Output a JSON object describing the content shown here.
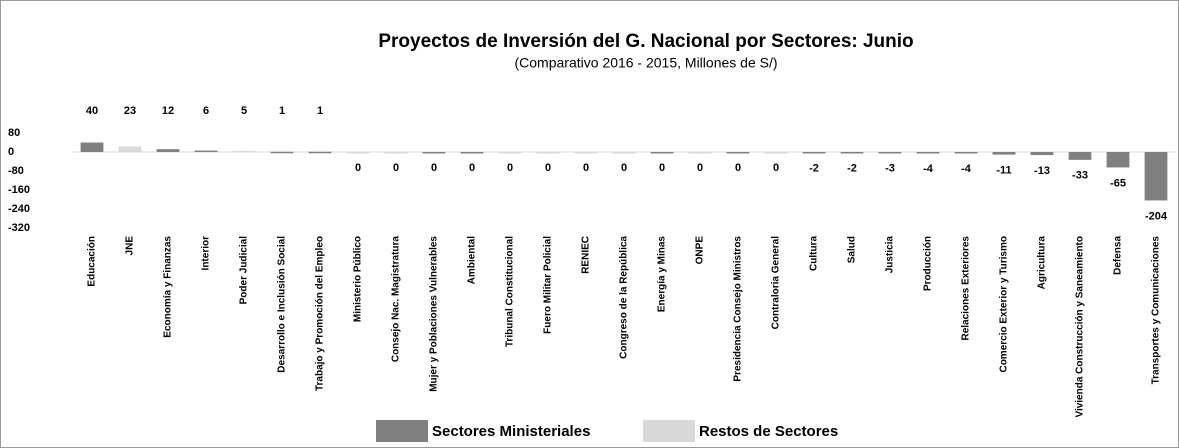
{
  "chart_data": {
    "type": "bar",
    "title": "Proyectos de Inversión del G. Nacional por Sectores: Junio",
    "subtitle": "(Comparativo 2016 - 2015, Millones de S/)",
    "categories": [
      "Educación",
      "JNE",
      "Economía y Finanzas",
      "Interior",
      "Poder Judicial",
      "Desarrollo e Inclusión Social",
      "Trabajo y Promoción del Empleo",
      "Ministerio Público",
      "Consejo Nac. Magistratura",
      "Mujer y Poblaciones Vulnerables",
      "Ambiental",
      "Tribunal Constitucional",
      "Fuero Militar Policial",
      "RENIEC",
      "Congreso de la República",
      "Energía y Minas",
      "ONPE",
      "Presidencia Consejo Ministros",
      "Contraloria General",
      "Cultura",
      "Salud",
      "Justicia",
      "Producción",
      "Relaciones Exteriores",
      "Comercio Exterior y Turismo",
      "Agricultura",
      "Vivienda Construcción y Saneamiento",
      "Defensa",
      "Transportes y Comunicaciones"
    ],
    "series": [
      {
        "name": "Sectores Ministeriales",
        "color": "#808080",
        "values": [
          40,
          null,
          12,
          6,
          null,
          1,
          1,
          null,
          null,
          0,
          0,
          null,
          null,
          null,
          null,
          0,
          null,
          0,
          null,
          -2,
          -2,
          -3,
          -4,
          -4,
          -11,
          -13,
          -33,
          -65,
          -204
        ]
      },
      {
        "name": "Restos de Sectores",
        "color": "#d9d9d9",
        "values": [
          null,
          23,
          null,
          null,
          5,
          null,
          null,
          0,
          0,
          null,
          null,
          0,
          0,
          0,
          0,
          null,
          0,
          null,
          0,
          null,
          null,
          null,
          null,
          null,
          null,
          null,
          null,
          null,
          null
        ]
      }
    ],
    "ylim": [
      -320,
      80
    ],
    "yticks": [
      80,
      0,
      -80,
      -160,
      -240,
      -320
    ]
  }
}
